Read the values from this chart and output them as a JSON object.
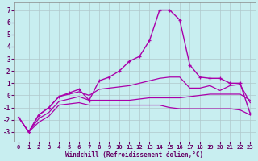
{
  "xlabel": "Windchill (Refroidissement éolien,°C)",
  "bg_color": "#c8eef0",
  "grid_color": "#b0c8cc",
  "line_color": "#aa00aa",
  "xlim": [
    -0.5,
    23.5
  ],
  "ylim": [
    -3.8,
    7.6
  ],
  "xticks": [
    0,
    1,
    2,
    3,
    4,
    5,
    6,
    7,
    8,
    9,
    10,
    11,
    12,
    13,
    14,
    15,
    16,
    17,
    18,
    19,
    20,
    21,
    22,
    23
  ],
  "yticks": [
    -3,
    -2,
    -1,
    0,
    1,
    2,
    3,
    4,
    5,
    6,
    7
  ],
  "series": [
    {
      "x": [
        0,
        1,
        2,
        3,
        4,
        5,
        6,
        7,
        8,
        9,
        10,
        11,
        12,
        13,
        14,
        15,
        16,
        17,
        18,
        19,
        20,
        21,
        22,
        23
      ],
      "y": [
        -1.8,
        -3.0,
        -2.2,
        -1.7,
        -0.8,
        -0.7,
        -0.6,
        -0.8,
        -0.8,
        -0.8,
        -0.8,
        -0.8,
        -0.8,
        -0.8,
        -0.8,
        -1.0,
        -1.1,
        -1.1,
        -1.1,
        -1.1,
        -1.1,
        -1.1,
        -1.2,
        -1.6
      ],
      "marker": false,
      "lw": 0.9
    },
    {
      "x": [
        0,
        1,
        2,
        3,
        4,
        5,
        6,
        7,
        8,
        9,
        10,
        11,
        12,
        13,
        14,
        15,
        16,
        17,
        18,
        19,
        20,
        21,
        22,
        23
      ],
      "y": [
        -1.8,
        -3.0,
        -1.9,
        -1.4,
        -0.5,
        -0.3,
        -0.1,
        -0.4,
        -0.4,
        -0.4,
        -0.4,
        -0.4,
        -0.3,
        -0.2,
        -0.2,
        -0.2,
        -0.2,
        -0.1,
        0.0,
        0.1,
        0.1,
        0.1,
        0.1,
        -0.4
      ],
      "marker": false,
      "lw": 0.9
    },
    {
      "x": [
        0,
        1,
        2,
        3,
        4,
        5,
        6,
        7,
        8,
        9,
        10,
        11,
        12,
        13,
        14,
        15,
        16,
        17,
        18,
        19,
        20,
        21,
        22,
        23
      ],
      "y": [
        -1.8,
        -3.0,
        -1.6,
        -1.0,
        -0.1,
        0.1,
        0.3,
        0.0,
        0.5,
        0.6,
        0.7,
        0.8,
        1.0,
        1.2,
        1.4,
        1.5,
        1.5,
        0.6,
        0.6,
        0.8,
        0.4,
        0.8,
        0.9,
        -0.6
      ],
      "marker": false,
      "lw": 0.9
    },
    {
      "x": [
        0,
        1,
        2,
        3,
        4,
        5,
        6,
        7,
        8,
        9,
        10,
        11,
        12,
        13,
        14,
        15,
        16,
        17,
        18,
        19,
        20,
        21,
        22,
        23
      ],
      "y": [
        -1.8,
        -3.0,
        -1.6,
        -1.0,
        -0.1,
        0.2,
        0.5,
        -0.4,
        1.2,
        1.5,
        2.0,
        2.8,
        3.2,
        4.5,
        7.0,
        7.0,
        6.2,
        2.5,
        1.5,
        1.4,
        1.4,
        1.0,
        1.0,
        -1.5
      ],
      "marker": true,
      "lw": 1.0
    }
  ]
}
